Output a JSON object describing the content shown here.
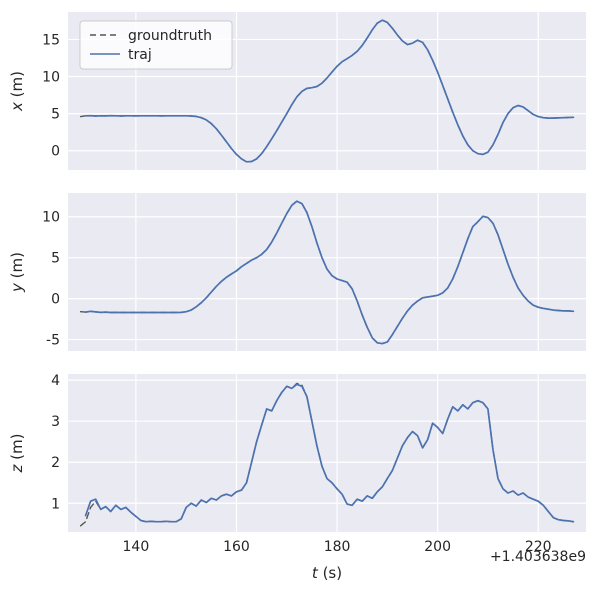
{
  "figure": {
    "xlabel_var": "t",
    "xlabel_unit": "(s)",
    "x_offset_text": "+1.403638e9",
    "background": "#ffffff",
    "axes_background": "#eaeaf2",
    "grid_color": "#ffffff",
    "tick_color": "#262626",
    "xlim": [
      126.5,
      229.5
    ],
    "xticks": [
      140,
      160,
      180,
      200,
      220
    ]
  },
  "legend": {
    "position": "upper left",
    "entries": [
      {
        "label": "groundtruth",
        "color": "#555555",
        "dash": true
      },
      {
        "label": "traj",
        "color": "#4c72b0",
        "dash": false
      }
    ]
  },
  "chart_data": [
    {
      "type": "line",
      "ylabel_var": "x",
      "ylabel_unit": "(m)",
      "ylim": [
        -2.6,
        18.7
      ],
      "yticks": [
        0,
        5,
        10,
        15
      ],
      "x": [
        129,
        130,
        131,
        132,
        133,
        134,
        135,
        136,
        137,
        138,
        139,
        140,
        141,
        142,
        143,
        144,
        145,
        146,
        147,
        148,
        149,
        150,
        151,
        152,
        153,
        154,
        155,
        156,
        157,
        158,
        159,
        160,
        161,
        162,
        163,
        164,
        165,
        166,
        167,
        168,
        169,
        170,
        171,
        172,
        173,
        174,
        175,
        176,
        177,
        178,
        179,
        180,
        181,
        182,
        183,
        184,
        185,
        186,
        187,
        188,
        189,
        190,
        191,
        192,
        193,
        194,
        195,
        196,
        197,
        198,
        199,
        200,
        201,
        202,
        203,
        204,
        205,
        206,
        207,
        208,
        209,
        210,
        211,
        212,
        213,
        214,
        215,
        216,
        217,
        218,
        219,
        220,
        221,
        222,
        223,
        224,
        225,
        226,
        227
      ],
      "series": [
        {
          "name": "groundtruth",
          "color": "#555555",
          "dash": true,
          "values": [
            4.6,
            4.7,
            4.72,
            4.68,
            4.71,
            4.69,
            4.72,
            4.7,
            4.68,
            4.71,
            4.7,
            4.69,
            4.7,
            4.71,
            4.7,
            4.7,
            4.69,
            4.7,
            4.7,
            4.71,
            4.7,
            4.7,
            4.68,
            4.62,
            4.45,
            4.15,
            3.65,
            2.95,
            2.1,
            1.2,
            0.3,
            -0.5,
            -1.1,
            -1.5,
            -1.45,
            -1.1,
            -0.4,
            0.55,
            1.6,
            2.7,
            3.85,
            5.0,
            6.2,
            7.25,
            8.0,
            8.4,
            8.5,
            8.65,
            9.1,
            9.8,
            10.6,
            11.4,
            12.0,
            12.4,
            12.85,
            13.4,
            14.2,
            15.2,
            16.3,
            17.2,
            17.6,
            17.3,
            16.5,
            15.6,
            14.8,
            14.3,
            14.5,
            14.9,
            14.6,
            13.6,
            12.2,
            10.6,
            8.8,
            7.0,
            5.2,
            3.5,
            2.0,
            0.8,
            0.0,
            -0.4,
            -0.5,
            -0.2,
            0.8,
            2.2,
            3.8,
            5.0,
            5.8,
            6.1,
            5.9,
            5.4,
            4.9,
            4.6,
            4.45,
            4.4,
            4.4,
            4.42,
            4.45,
            4.48,
            4.5
          ]
        },
        {
          "name": "traj",
          "color": "#4c72b0",
          "dash": false,
          "values": [
            null,
            4.7,
            4.72,
            4.68,
            4.71,
            4.69,
            4.72,
            4.7,
            4.68,
            4.71,
            4.7,
            4.69,
            4.7,
            4.71,
            4.7,
            4.7,
            4.69,
            4.7,
            4.7,
            4.71,
            4.7,
            4.7,
            4.68,
            4.62,
            4.45,
            4.15,
            3.65,
            2.95,
            2.1,
            1.2,
            0.3,
            -0.5,
            -1.1,
            -1.5,
            -1.45,
            -1.1,
            -0.4,
            0.55,
            1.6,
            2.7,
            3.85,
            5.0,
            6.2,
            7.25,
            8.0,
            8.4,
            8.5,
            8.65,
            9.1,
            9.8,
            10.6,
            11.4,
            12.0,
            12.4,
            12.85,
            13.4,
            14.2,
            15.2,
            16.3,
            17.2,
            17.6,
            17.3,
            16.5,
            15.6,
            14.8,
            14.3,
            14.5,
            14.9,
            14.6,
            13.6,
            12.2,
            10.6,
            8.8,
            7.0,
            5.2,
            3.5,
            2.0,
            0.8,
            0.0,
            -0.4,
            -0.5,
            -0.2,
            0.8,
            2.2,
            3.8,
            5.0,
            5.8,
            6.1,
            5.9,
            5.4,
            4.9,
            4.6,
            4.45,
            4.4,
            4.4,
            4.42,
            4.45,
            4.48,
            4.5
          ]
        }
      ]
    },
    {
      "type": "line",
      "ylabel_var": "y",
      "ylabel_unit": "(m)",
      "ylim": [
        -6.4,
        12.9
      ],
      "yticks": [
        -5,
        0,
        5,
        10
      ],
      "x": [
        129,
        130,
        131,
        132,
        133,
        134,
        135,
        136,
        137,
        138,
        139,
        140,
        141,
        142,
        143,
        144,
        145,
        146,
        147,
        148,
        149,
        150,
        151,
        152,
        153,
        154,
        155,
        156,
        157,
        158,
        159,
        160,
        161,
        162,
        163,
        164,
        165,
        166,
        167,
        168,
        169,
        170,
        171,
        172,
        173,
        174,
        175,
        176,
        177,
        178,
        179,
        180,
        181,
        182,
        183,
        184,
        185,
        186,
        187,
        188,
        189,
        190,
        191,
        192,
        193,
        194,
        195,
        196,
        197,
        198,
        199,
        200,
        201,
        202,
        203,
        204,
        205,
        206,
        207,
        208,
        209,
        210,
        211,
        212,
        213,
        214,
        215,
        216,
        217,
        218,
        219,
        220,
        221,
        222,
        223,
        224,
        225,
        226,
        227
      ],
      "series": [
        {
          "name": "groundtruth",
          "color": "#555555",
          "dash": true,
          "values": [
            -1.6,
            -1.65,
            -1.55,
            -1.62,
            -1.68,
            -1.65,
            -1.7,
            -1.68,
            -1.7,
            -1.7,
            -1.7,
            -1.7,
            -1.7,
            -1.7,
            -1.7,
            -1.7,
            -1.7,
            -1.7,
            -1.7,
            -1.7,
            -1.68,
            -1.6,
            -1.4,
            -1.0,
            -0.5,
            0.1,
            0.8,
            1.5,
            2.1,
            2.6,
            3.0,
            3.4,
            3.9,
            4.3,
            4.7,
            5.0,
            5.4,
            6.0,
            6.9,
            8.0,
            9.2,
            10.4,
            11.4,
            11.9,
            11.6,
            10.5,
            8.8,
            6.8,
            5.0,
            3.6,
            2.8,
            2.4,
            2.2,
            2.0,
            1.2,
            -0.3,
            -2.0,
            -3.5,
            -4.8,
            -5.4,
            -5.5,
            -5.3,
            -4.4,
            -3.4,
            -2.4,
            -1.5,
            -0.8,
            -0.3,
            0.1,
            0.2,
            0.3,
            0.4,
            0.7,
            1.3,
            2.4,
            3.9,
            5.6,
            7.3,
            8.8,
            9.4,
            10.05,
            9.9,
            9.2,
            7.8,
            6.0,
            4.2,
            2.6,
            1.3,
            0.4,
            -0.3,
            -0.8,
            -1.05,
            -1.2,
            -1.3,
            -1.4,
            -1.45,
            -1.5,
            -1.5,
            -1.55,
            -1.6
          ]
        },
        {
          "name": "traj",
          "color": "#4c72b0",
          "dash": false,
          "values": [
            null,
            -1.65,
            -1.55,
            -1.62,
            -1.68,
            -1.65,
            -1.7,
            -1.68,
            -1.7,
            -1.7,
            -1.7,
            -1.7,
            -1.7,
            -1.7,
            -1.7,
            -1.7,
            -1.7,
            -1.7,
            -1.7,
            -1.7,
            -1.68,
            -1.6,
            -1.4,
            -1.0,
            -0.5,
            0.1,
            0.8,
            1.5,
            2.1,
            2.6,
            3.0,
            3.4,
            3.9,
            4.3,
            4.7,
            5.0,
            5.4,
            6.0,
            6.9,
            8.0,
            9.2,
            10.4,
            11.4,
            11.9,
            11.6,
            10.5,
            8.8,
            6.8,
            5.0,
            3.6,
            2.8,
            2.4,
            2.2,
            2.0,
            1.2,
            -0.3,
            -2.0,
            -3.5,
            -4.8,
            -5.4,
            -5.5,
            -5.3,
            -4.4,
            -3.4,
            -2.4,
            -1.5,
            -0.8,
            -0.3,
            0.1,
            0.2,
            0.3,
            0.4,
            0.7,
            1.3,
            2.4,
            3.9,
            5.6,
            7.3,
            8.8,
            9.4,
            10.05,
            9.9,
            9.2,
            7.8,
            6.0,
            4.2,
            2.6,
            1.3,
            0.4,
            -0.3,
            -0.8,
            -1.05,
            -1.2,
            -1.3,
            -1.4,
            -1.45,
            -1.5,
            -1.5,
            -1.55,
            -1.6
          ]
        }
      ]
    },
    {
      "type": "line",
      "ylabel_var": "z",
      "ylabel_unit": "(m)",
      "ylim": [
        0.3,
        4.15
      ],
      "yticks": [
        1,
        2,
        3,
        4
      ],
      "x": [
        129,
        130,
        131,
        132,
        133,
        134,
        135,
        136,
        137,
        138,
        139,
        140,
        141,
        142,
        143,
        144,
        145,
        146,
        147,
        148,
        149,
        150,
        151,
        152,
        153,
        154,
        155,
        156,
        157,
        158,
        159,
        160,
        161,
        162,
        163,
        164,
        165,
        166,
        167,
        168,
        169,
        170,
        171,
        172,
        173,
        174,
        175,
        176,
        177,
        178,
        179,
        180,
        181,
        182,
        183,
        184,
        185,
        186,
        187,
        188,
        189,
        190,
        191,
        192,
        193,
        194,
        195,
        196,
        197,
        198,
        199,
        200,
        201,
        202,
        203,
        204,
        205,
        206,
        207,
        208,
        209,
        210,
        211,
        212,
        213,
        214,
        215,
        216,
        217,
        218,
        219,
        220,
        221,
        222,
        223,
        224,
        225,
        226,
        227
      ],
      "series": [
        {
          "name": "groundtruth",
          "color": "#555555",
          "dash": true,
          "values": [
            0.45,
            0.55,
            0.9,
            1.05,
            0.85,
            0.92,
            0.8,
            0.95,
            0.85,
            0.9,
            0.78,
            0.68,
            0.58,
            0.55,
            0.56,
            0.55,
            0.55,
            0.56,
            0.55,
            0.55,
            0.62,
            0.9,
            1.0,
            0.93,
            1.08,
            1.02,
            1.12,
            1.08,
            1.18,
            1.22,
            1.18,
            1.28,
            1.32,
            1.5,
            2.0,
            2.5,
            2.9,
            3.3,
            3.25,
            3.5,
            3.7,
            3.85,
            3.8,
            3.92,
            3.88,
            3.6,
            3.0,
            2.4,
            1.9,
            1.6,
            1.5,
            1.35,
            1.22,
            0.98,
            0.95,
            1.1,
            1.05,
            1.18,
            1.12,
            1.28,
            1.4,
            1.6,
            1.8,
            2.1,
            2.4,
            2.6,
            2.75,
            2.65,
            2.35,
            2.55,
            2.95,
            2.85,
            2.7,
            3.05,
            3.35,
            3.25,
            3.4,
            3.3,
            3.45,
            3.5,
            3.45,
            3.3,
            2.3,
            1.6,
            1.35,
            1.25,
            1.3,
            1.2,
            1.25,
            1.15,
            1.1,
            1.05,
            0.95,
            0.8,
            0.65,
            0.6,
            0.58,
            0.57,
            0.55
          ]
        },
        {
          "name": "traj",
          "color": "#4c72b0",
          "dash": false,
          "values": [
            null,
            0.7,
            1.05,
            1.1,
            0.85,
            0.92,
            0.8,
            0.95,
            0.85,
            0.9,
            0.78,
            0.68,
            0.58,
            0.55,
            0.56,
            0.55,
            0.55,
            0.56,
            0.55,
            0.55,
            0.62,
            0.9,
            1.0,
            0.93,
            1.08,
            1.02,
            1.12,
            1.08,
            1.18,
            1.22,
            1.18,
            1.28,
            1.32,
            1.5,
            2.0,
            2.5,
            2.9,
            3.3,
            3.25,
            3.5,
            3.7,
            3.85,
            3.8,
            3.9,
            3.85,
            3.6,
            3.0,
            2.4,
            1.9,
            1.6,
            1.5,
            1.35,
            1.22,
            0.98,
            0.95,
            1.1,
            1.05,
            1.18,
            1.12,
            1.28,
            1.4,
            1.6,
            1.8,
            2.1,
            2.4,
            2.6,
            2.75,
            2.65,
            2.35,
            2.55,
            2.95,
            2.85,
            2.7,
            3.05,
            3.35,
            3.25,
            3.4,
            3.3,
            3.45,
            3.5,
            3.45,
            3.3,
            2.3,
            1.6,
            1.35,
            1.25,
            1.3,
            1.2,
            1.25,
            1.15,
            1.1,
            1.05,
            0.95,
            0.8,
            0.65,
            0.6,
            0.58,
            0.57,
            0.55
          ]
        }
      ]
    }
  ]
}
